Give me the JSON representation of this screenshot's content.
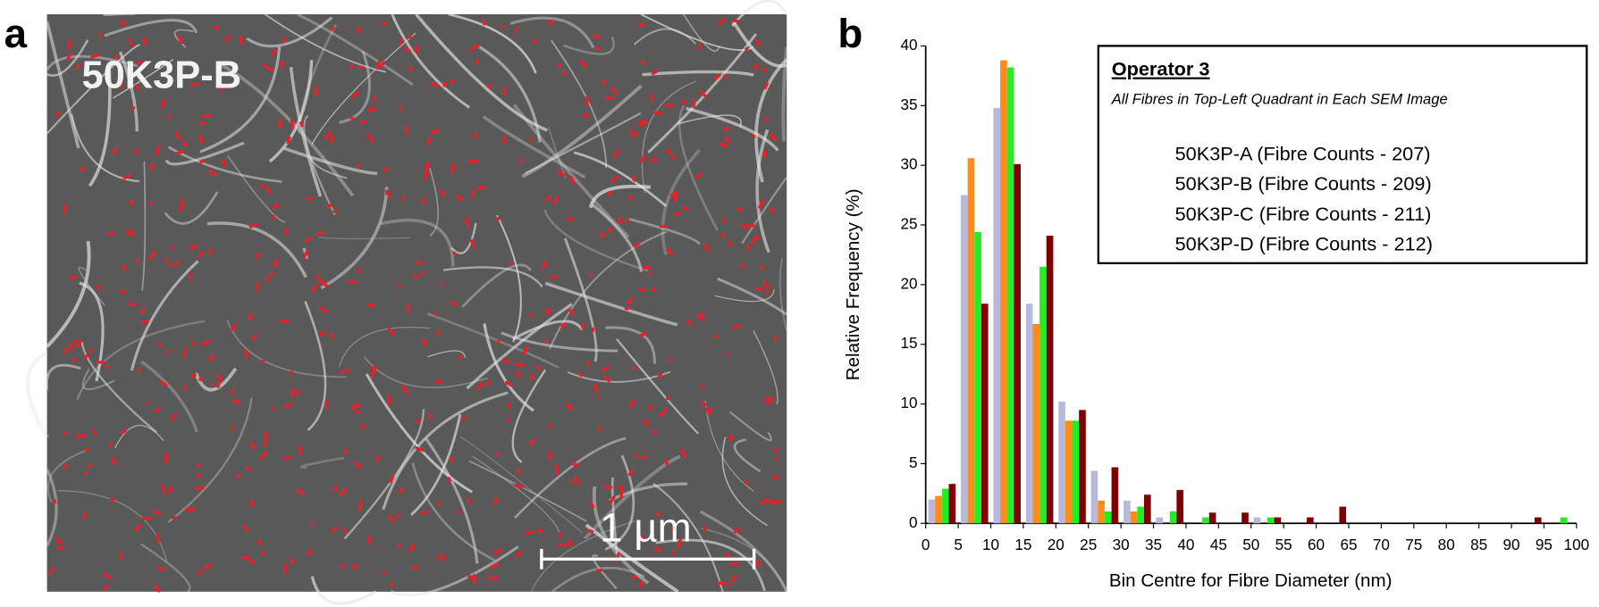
{
  "image_panel": {
    "panel_label": "a",
    "label": "50K3P-B",
    "scale_bar": "1 µm"
  },
  "chart_data": {
    "type": "histogram",
    "panel_label": "b",
    "legend_title": "Operator 3",
    "legend_subtitle": "All Fibres in Top-Left Quadrant in Each SEM Image",
    "xlabel": "Bin Centre for Fibre Diameter (nm)",
    "ylabel": "Relative Frequency (%)",
    "bins": [
      0,
      5,
      10,
      15,
      20,
      25,
      30,
      35,
      40,
      45,
      50,
      55,
      60,
      65,
      70,
      75,
      80,
      85,
      90,
      95,
      100
    ],
    "series": [
      {
        "name": "50K3P-A (Fibre Counts - 207)",
        "color": "#b8b8dc",
        "values": [
          2.0,
          27.5,
          34.8,
          18.4,
          10.2,
          4.4,
          1.9,
          0.5,
          0,
          0,
          0.5,
          0,
          0,
          0,
          0,
          0,
          0,
          0,
          0,
          0
        ]
      },
      {
        "name": "50K3P-B (Fibre Counts - 209)",
        "color": "#ff8c1a",
        "values": [
          2.3,
          30.6,
          38.8,
          16.7,
          8.6,
          1.9,
          1.0,
          0,
          0,
          0,
          0,
          0,
          0,
          0,
          0,
          0,
          0,
          0,
          0,
          0
        ]
      },
      {
        "name": "50K3P-C (Fibre Counts - 211)",
        "color": "#22ee22",
        "values": [
          2.9,
          24.4,
          38.2,
          21.5,
          8.6,
          1.0,
          1.4,
          1.0,
          0.5,
          0,
          0.5,
          0,
          0,
          0,
          0,
          0,
          0,
          0,
          0,
          0.5
        ]
      },
      {
        "name": "50K3P-D (Fibre Counts - 212)",
        "color": "#800000",
        "values": [
          3.3,
          18.4,
          30.1,
          24.1,
          9.5,
          4.7,
          2.4,
          2.8,
          0.9,
          0.9,
          0.5,
          0.5,
          1.4,
          0,
          0,
          0,
          0,
          0,
          0.5,
          0
        ]
      }
    ],
    "xlim": [
      0,
      100
    ],
    "xticks": [
      0,
      5,
      10,
      15,
      20,
      25,
      30,
      35,
      40,
      45,
      50,
      55,
      60,
      65,
      70,
      75,
      80,
      85,
      90,
      95,
      100
    ],
    "ylim": [
      0,
      40
    ],
    "yticks": [
      0,
      5,
      10,
      15,
      20,
      25,
      30,
      35,
      40
    ],
    "legend": "upper right"
  }
}
